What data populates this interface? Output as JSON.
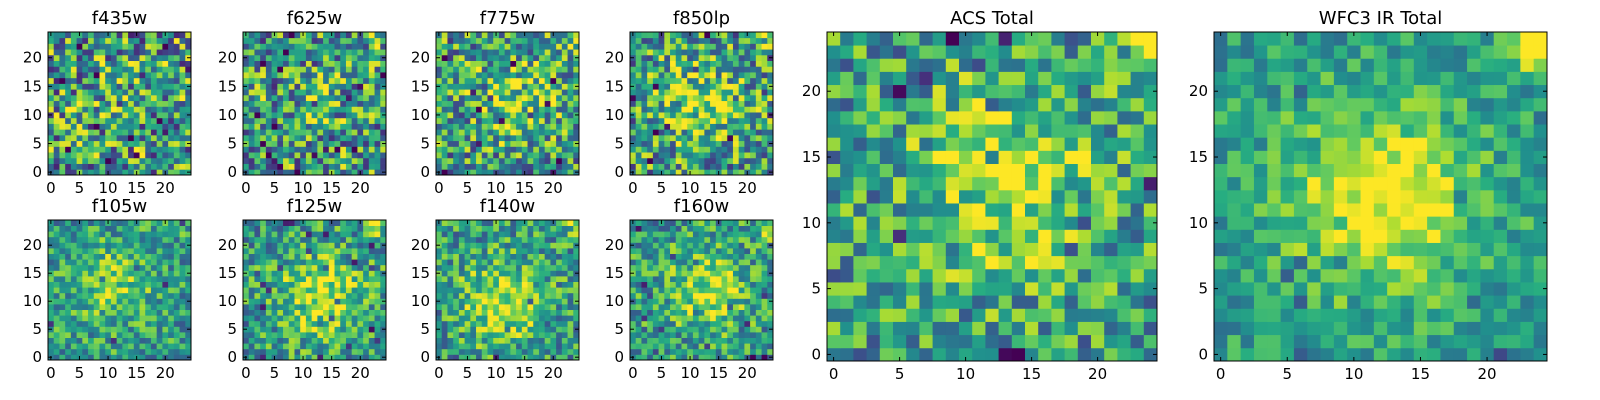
{
  "chart_data": [
    {
      "type": "heatmap",
      "title": "f435w",
      "xlim": [
        0,
        24
      ],
      "ylim": [
        0,
        24
      ],
      "grid": 24,
      "xticks": [
        0,
        5,
        10,
        15,
        20
      ],
      "yticks": [
        0,
        5,
        10,
        15,
        20
      ],
      "colormap": "viridis",
      "seed": 11,
      "blob_center": [
        12,
        12
      ],
      "blob_strength": 0.05,
      "noise": 0.9,
      "corner_bright": 0.0
    },
    {
      "type": "heatmap",
      "title": "f625w",
      "xlim": [
        0,
        24
      ],
      "ylim": [
        0,
        24
      ],
      "grid": 24,
      "xticks": [
        0,
        5,
        10,
        15,
        20
      ],
      "yticks": [
        0,
        5,
        10,
        15,
        20
      ],
      "colormap": "viridis",
      "seed": 23,
      "blob_center": [
        12,
        12
      ],
      "blob_strength": 0.1,
      "noise": 0.85,
      "corner_bright": 0.15
    },
    {
      "type": "heatmap",
      "title": "f775w",
      "xlim": [
        0,
        24
      ],
      "ylim": [
        0,
        24
      ],
      "grid": 24,
      "xticks": [
        0,
        5,
        10,
        15,
        20
      ],
      "yticks": [
        0,
        5,
        10,
        15,
        20
      ],
      "colormap": "viridis",
      "seed": 37,
      "blob_center": [
        13,
        13
      ],
      "blob_strength": 0.25,
      "noise": 0.8,
      "corner_bright": 0.2
    },
    {
      "type": "heatmap",
      "title": "f850lp",
      "xlim": [
        0,
        24
      ],
      "ylim": [
        0,
        24
      ],
      "grid": 24,
      "xticks": [
        0,
        5,
        10,
        15,
        20
      ],
      "yticks": [
        0,
        5,
        10,
        15,
        20
      ],
      "colormap": "viridis",
      "seed": 41,
      "blob_center": [
        12,
        12
      ],
      "blob_strength": 0.3,
      "noise": 0.8,
      "corner_bright": 0.2
    },
    {
      "type": "heatmap",
      "title": "f105w",
      "xlim": [
        0,
        24
      ],
      "ylim": [
        0,
        24
      ],
      "grid": 24,
      "xticks": [
        0,
        5,
        10,
        15,
        20
      ],
      "yticks": [
        0,
        5,
        10,
        15,
        20
      ],
      "colormap": "viridis",
      "seed": 53,
      "blob_center": [
        11,
        13
      ],
      "blob_strength": 0.25,
      "noise": 0.55,
      "corner_bright": 0.1
    },
    {
      "type": "heatmap",
      "title": "f125w",
      "xlim": [
        0,
        24
      ],
      "ylim": [
        0,
        24
      ],
      "grid": 24,
      "xticks": [
        0,
        5,
        10,
        15,
        20
      ],
      "yticks": [
        0,
        5,
        10,
        15,
        20
      ],
      "colormap": "viridis",
      "seed": 67,
      "blob_center": [
        13,
        11
      ],
      "blob_strength": 0.4,
      "noise": 0.6,
      "corner_bright": 0.35
    },
    {
      "type": "heatmap",
      "title": "f140w",
      "xlim": [
        0,
        24
      ],
      "ylim": [
        0,
        24
      ],
      "grid": 24,
      "xticks": [
        0,
        5,
        10,
        15,
        20
      ],
      "yticks": [
        0,
        5,
        10,
        15,
        20
      ],
      "colormap": "viridis",
      "seed": 79,
      "blob_center": [
        11,
        10
      ],
      "blob_strength": 0.35,
      "noise": 0.6,
      "corner_bright": 0.2
    },
    {
      "type": "heatmap",
      "title": "f160w",
      "xlim": [
        0,
        24
      ],
      "ylim": [
        0,
        24
      ],
      "grid": 24,
      "xticks": [
        0,
        5,
        10,
        15,
        20
      ],
      "yticks": [
        0,
        5,
        10,
        15,
        20
      ],
      "colormap": "viridis",
      "seed": 83,
      "blob_center": [
        13,
        12
      ],
      "blob_strength": 0.3,
      "noise": 0.6,
      "corner_bright": 0.35
    },
    {
      "type": "heatmap",
      "title": "ACS Total",
      "xlim": [
        0,
        24
      ],
      "ylim": [
        0,
        24
      ],
      "grid": 24,
      "xticks": [
        0,
        5,
        10,
        15,
        20
      ],
      "yticks": [
        0,
        5,
        10,
        15,
        20
      ],
      "colormap": "viridis",
      "seed": 97,
      "blob_center": [
        13,
        13
      ],
      "blob_strength": 0.35,
      "noise": 0.65,
      "corner_bright": 0.4
    },
    {
      "type": "heatmap",
      "title": "WFC3 IR Total",
      "xlim": [
        0,
        24
      ],
      "ylim": [
        0,
        24
      ],
      "grid": 24,
      "xticks": [
        0,
        5,
        10,
        15,
        20
      ],
      "yticks": [
        0,
        5,
        10,
        15,
        20
      ],
      "colormap": "viridis",
      "seed": 101,
      "blob_center": [
        12,
        12
      ],
      "blob_strength": 0.5,
      "noise": 0.4,
      "corner_bright": 0.5
    }
  ]
}
